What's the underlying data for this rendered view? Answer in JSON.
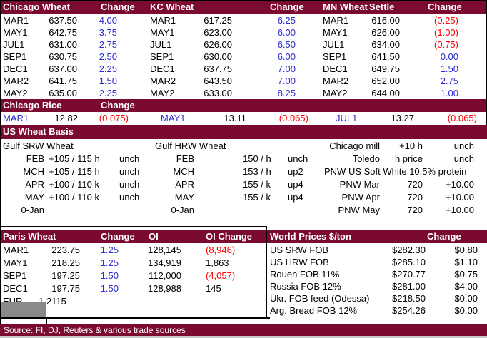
{
  "colors": {
    "maroon": "#7A0A31",
    "blue": "#2B2BD5",
    "red": "#FF0000",
    "gray_box": "#8A8A8A"
  },
  "futures": {
    "chicago": {
      "title": "Chicago Wheat",
      "change_header": "Change",
      "rows": [
        [
          "MAR1",
          "637.50",
          "4.00"
        ],
        [
          "MAY1",
          "642.75",
          "3.75"
        ],
        [
          "JUL1",
          "631.00",
          "2.75"
        ],
        [
          "SEP1",
          "630.75",
          "2.50"
        ],
        [
          "DEC1",
          "637.00",
          "2.25"
        ],
        [
          "MAR2",
          "641.75",
          "1.50"
        ],
        [
          "MAY2",
          "635.00",
          "2.25"
        ]
      ]
    },
    "kc": {
      "title": "KC Wheat",
      "change_header": "Change",
      "rows": [
        [
          "MAR1",
          "617.25",
          "6.25"
        ],
        [
          "MAY1",
          "623.00",
          "6.00"
        ],
        [
          "JUL1",
          "626.00",
          "6.50"
        ],
        [
          "SEP1",
          "630.00",
          "6.00"
        ],
        [
          "DEC1",
          "637.75",
          "7.00"
        ],
        [
          "MAR2",
          "643.50",
          "7.00"
        ],
        [
          "MAY2",
          "633.00",
          "8.25"
        ]
      ]
    },
    "mn": {
      "title": "MN Wheat",
      "settle_header": "Settle",
      "change_header": "Change",
      "rows": [
        [
          "MAR1",
          "616.00",
          "(0.25)"
        ],
        [
          "MAY1",
          "626.00",
          "(1.00)"
        ],
        [
          "JUL1",
          "634.00",
          "(0.75)"
        ],
        [
          "SEP1",
          "641.50",
          "0.00"
        ],
        [
          "DEC1",
          "649.75",
          "1.50"
        ],
        [
          "MAR2",
          "652.00",
          "2.75"
        ],
        [
          "MAY2",
          "644.00",
          "1.00"
        ]
      ]
    }
  },
  "rice": {
    "title": "Chicago Rice",
    "change_header": "Change",
    "row": [
      [
        "MAR1",
        "12.82",
        "(0.075)",
        "",
        "MAY1",
        "13.11",
        "(0.065)",
        "",
        "JUL1",
        "13.27",
        "(0.065)"
      ]
    ]
  },
  "basis": {
    "title": "US Wheat Basis",
    "gulf_srw": {
      "label": "Gulf SRW Wheat",
      "rows": [
        [
          "FEB",
          "+105 / 115 h",
          "unch"
        ],
        [
          "MCH",
          "+105 / 115 h",
          "unch"
        ],
        [
          "APR",
          "+100 / 110 k",
          "unch"
        ],
        [
          "MAY",
          "+100 / 110 k",
          "unch"
        ],
        [
          "0-Jan",
          "",
          ""
        ]
      ]
    },
    "gulf_hrw": {
      "label": "Gulf HRW Wheat",
      "rows": [
        [
          "FEB",
          "150 / h",
          "unch"
        ],
        [
          "MCH",
          "153 / h",
          "up2"
        ],
        [
          "APR",
          "155 / k",
          "up4"
        ],
        [
          "MAY",
          "155 / k",
          "up4"
        ],
        [
          "0-Jan",
          "",
          ""
        ]
      ]
    },
    "domestic": {
      "rows": [
        [
          "Chicago mill",
          "+10 h",
          "unch"
        ],
        [
          "Toledo",
          "h price",
          "unch"
        ]
      ],
      "pnw_header": "PNW US Soft White 10.5% protein",
      "pnw_rows": [
        [
          "PNW Mar",
          "720",
          "+10.00"
        ],
        [
          "PNW Apr",
          "720",
          "+10.00"
        ],
        [
          "PNW May",
          "720",
          "+10.00"
        ]
      ]
    }
  },
  "paris": {
    "title": "Paris Wheat",
    "change_header": "Change",
    "oi_header": "OI",
    "oi_change_header": "OI Change",
    "rows": [
      [
        "MAR1",
        "223.75",
        "1.25",
        "128,145",
        "(8,946)"
      ],
      [
        "MAY1",
        "218.25",
        "1.25",
        "134,919",
        "1,863"
      ],
      [
        "SEP1",
        "197.25",
        "1.50",
        "112,000",
        "(4,057)"
      ],
      [
        "DEC1",
        "197.75",
        "1.50",
        "128,988",
        "145"
      ]
    ],
    "eur_label": "EUR",
    "eur_value": "1.2115"
  },
  "world": {
    "title": "World Prices $/ton",
    "change_header": "Change",
    "rows": [
      [
        "US SRW FOB",
        "$282.30",
        "$0.80"
      ],
      [
        "US HRW FOB",
        "$285.10",
        "$1.10"
      ],
      [
        "Rouen FOB 11%",
        "$270.77",
        "$0.75"
      ],
      [
        "Russia FOB 12%",
        "$281.00",
        "$4.00"
      ],
      [
        "Ukr. FOB feed (Odessa)",
        "$218.50",
        "$0.00"
      ],
      [
        "Arg. Bread FOB 12%",
        "$254.26",
        "$0.00"
      ]
    ]
  },
  "footer": {
    "source": "Source: FI, DJ, Reuters & various trade sources"
  }
}
